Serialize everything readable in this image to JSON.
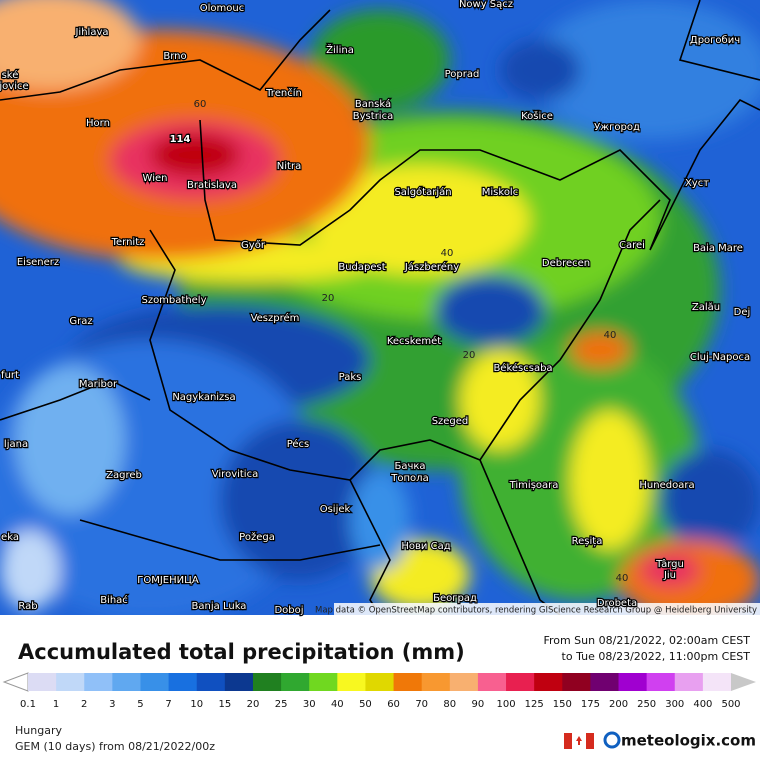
{
  "map": {
    "cities": [
      "Olomouc",
      "Nowy Sącz",
      "Дрогобич",
      "Jihlava",
      "Brno",
      "Žilina",
      "Poprad",
      "ské",
      "jovice",
      "Trenčín",
      "Banská",
      "Bystrica",
      "Košice",
      "Ужгород",
      "Horn",
      "Nitra",
      "Wien",
      "Bratislava",
      "Salgótarján",
      "Miskolc",
      "Хуст",
      "Ternitz",
      "Győr",
      "Carei",
      "Baia Mare",
      "Eisenerz",
      "Budapest",
      "Jászberény",
      "Debrecen",
      "Szombathely",
      "Zalău",
      "Graz",
      "Veszprém",
      "Dej",
      "Kecskemét",
      "Cluj-Napoca",
      "furt",
      "Maribor",
      "Paks",
      "Békéscsaba",
      "Nagykanizsa",
      "ljana",
      "Szeged",
      "Pécs",
      "Zagreb",
      "Virovitica",
      "Бачка",
      "Топола",
      "Timișoara",
      "Hunedoara",
      "Osijek",
      "Požega",
      "Нови Сад",
      "Reșița",
      "eka",
      "Târgu",
      "Jiu",
      "ГОМЈЕНИЦА",
      "Bihać",
      "Banja Luka",
      "Doboj",
      "Београд",
      "Drobeta",
      "Rab"
    ],
    "contour_labels": [
      "114",
      "60",
      "40",
      "20",
      "20",
      "40",
      "40"
    ],
    "attribution": "Map data © OpenStreetMap contributors, rendering GIScience Research Group @ Heidelberg University"
  },
  "header": {
    "title": "Accumulated total precipitation (mm)",
    "period_from": "From Sun 08/21/2022, 02:00am CEST",
    "period_to": "to Tue 08/23/2022, 11:00pm CEST"
  },
  "legend": {
    "items": [
      {
        "label": "0.1",
        "color": "#dcdcf4"
      },
      {
        "label": "1",
        "color": "#c0d8f8"
      },
      {
        "label": "2",
        "color": "#90c0f8"
      },
      {
        "label": "3",
        "color": "#60a8f0"
      },
      {
        "label": "5",
        "color": "#3890e8"
      },
      {
        "label": "7",
        "color": "#1870e0"
      },
      {
        "label": "10",
        "color": "#1050c0"
      },
      {
        "label": "15",
        "color": "#0c3890"
      },
      {
        "label": "20",
        "color": "#208020"
      },
      {
        "label": "25",
        "color": "#30a830"
      },
      {
        "label": "30",
        "color": "#70d820"
      },
      {
        "label": "40",
        "color": "#f8f820"
      },
      {
        "label": "50",
        "color": "#e0d800"
      },
      {
        "label": "60",
        "color": "#f07808"
      },
      {
        "label": "70",
        "color": "#f89830"
      },
      {
        "label": "80",
        "color": "#f8b070"
      },
      {
        "label": "90",
        "color": "#f86090"
      },
      {
        "label": "100",
        "color": "#e82050"
      },
      {
        "label": "125",
        "color": "#c00010"
      },
      {
        "label": "150",
        "color": "#900020"
      },
      {
        "label": "175",
        "color": "#700070"
      },
      {
        "label": "200",
        "color": "#a000d0"
      },
      {
        "label": "250",
        "color": "#d040f0"
      },
      {
        "label": "300",
        "color": "#e8a0f0"
      },
      {
        "label": "400",
        "color": "#f4e4f8"
      },
      {
        "label": "500",
        "color": "#c8c8c8"
      }
    ]
  },
  "footer": {
    "region": "Hungary",
    "model": "GEM (10 days) from 08/21/2022/00z",
    "brand": "meteologix.com"
  }
}
